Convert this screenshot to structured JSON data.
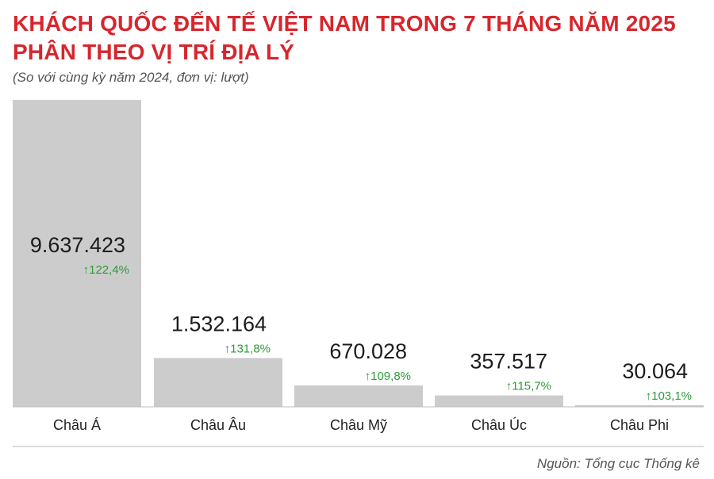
{
  "header": {
    "title_line1": "KHÁCH QUỐC ĐẾN TẾ VIỆT NAM TRONG 7 THÁNG NĂM 2025",
    "title_line2": "PHÂN THEO VỊ TRÍ ĐỊA LÝ",
    "subtitle": "(So với cùng kỳ năm 2024, đơn vị: lượt)"
  },
  "footer": {
    "source": "Nguồn: Tổng cục Thống kê"
  },
  "colors": {
    "title": "#d7262d",
    "bar": "#cccccc",
    "growth": "#2e9b3a",
    "value_text": "#1c1c1c"
  },
  "chart_data": {
    "type": "bar",
    "categories": [
      "Châu Á",
      "Châu Âu",
      "Châu Mỹ",
      "Châu Úc",
      "Châu Phi"
    ],
    "values": [
      9637423,
      1532164,
      670028,
      357517,
      30064
    ],
    "value_labels": [
      "9.637.423",
      "1.532.164",
      "670.028",
      "357.517",
      "30.064"
    ],
    "growth_labels": [
      "122,4%",
      "131,8%",
      "109,8%",
      "115,7%",
      "103,1%"
    ],
    "growth_direction": "up",
    "title": "KHÁCH QUỐC ĐẾN TẾ VIỆT NAM TRONG 7 THÁNG NĂM 2025 PHÂN THEO VỊ TRÍ ĐỊA LÝ",
    "xlabel": "",
    "ylabel": "",
    "ylim": [
      0,
      9637423
    ],
    "grid": false,
    "legend": "none"
  }
}
